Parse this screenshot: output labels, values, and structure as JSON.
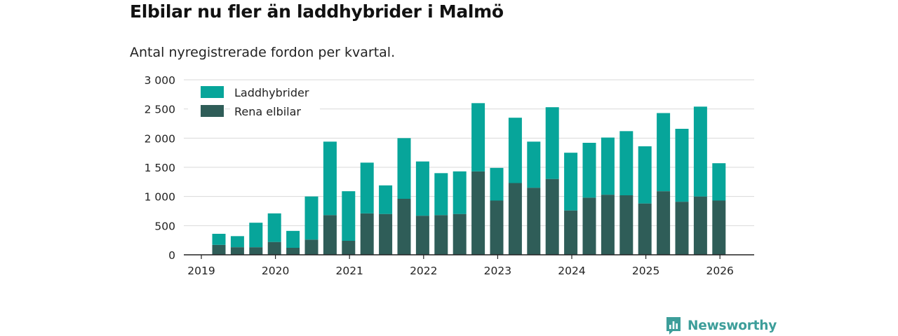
{
  "header": {
    "title": "Elbilar nu fler än laddhybrider i Malmö",
    "subtitle": "Antal nyregistrerade fordon per kvartal."
  },
  "brand": {
    "name": "Newsworthy",
    "icon": "newsworthy-logo-icon"
  },
  "colors": {
    "laddhybrider": "#07a59a",
    "elbilar": "#2f5d58",
    "grid": "#d9d9d9",
    "axis": "#222222"
  },
  "chart_data": {
    "type": "bar",
    "stacked": true,
    "title": "Elbilar nu fler än laddhybrider i Malmö",
    "subtitle": "Antal nyregistrerade fordon per kvartal.",
    "xlabel": "",
    "ylabel": "",
    "ylim": [
      0,
      3000
    ],
    "yticks": [
      0,
      500,
      1000,
      1500,
      2000,
      2500,
      3000
    ],
    "ytick_labels": [
      "0",
      "500",
      "1 000",
      "1 500",
      "2 000",
      "2 500",
      "3 000"
    ],
    "xticks": [
      "2019",
      "2020",
      "2021",
      "2022",
      "2023",
      "2024",
      "2025",
      "2026"
    ],
    "legend_position": "top-left",
    "categories": [
      "2019 Q2",
      "2019 Q3",
      "2019 Q4",
      "2020 Q1",
      "2020 Q2",
      "2020 Q3",
      "2020 Q4",
      "2021 Q1",
      "2021 Q2",
      "2021 Q3",
      "2021 Q4",
      "2022 Q1",
      "2022 Q2",
      "2022 Q3",
      "2022 Q4",
      "2023 Q1",
      "2023 Q2",
      "2023 Q3",
      "2023 Q4",
      "2024 Q1",
      "2024 Q2",
      "2024 Q3",
      "2024 Q4",
      "2025 Q1",
      "2025 Q2",
      "2025 Q3",
      "2025 Q4",
      "2026 Q1"
    ],
    "series": [
      {
        "name": "Rena elbilar",
        "values": [
          170,
          130,
          130,
          220,
          120,
          260,
          680,
          240,
          710,
          700,
          960,
          670,
          680,
          700,
          1430,
          930,
          1230,
          1150,
          1300,
          760,
          980,
          1030,
          1020,
          880,
          1090,
          910,
          1000,
          930
        ]
      },
      {
        "name": "Laddhybrider",
        "values": [
          190,
          190,
          420,
          490,
          290,
          740,
          1260,
          850,
          870,
          490,
          1040,
          930,
          720,
          730,
          1170,
          560,
          1120,
          790,
          1230,
          990,
          940,
          980,
          1100,
          980,
          1340,
          1250,
          1540,
          640
        ]
      }
    ],
    "legend": [
      "Laddhybrider",
      "Rena elbilar"
    ]
  }
}
